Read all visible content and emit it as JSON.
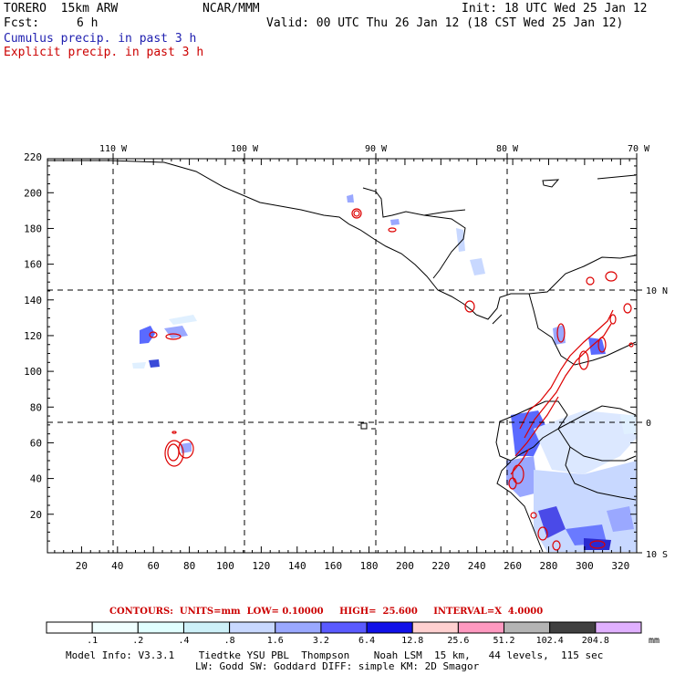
{
  "header": {
    "model": "TORERO  15km ARW",
    "fcst_label": "Fcst:",
    "fcst_value": "6 h",
    "center": "NCAR/MMM",
    "init": "Init: 18 UTC Wed 25 Jan 12",
    "valid": "Valid: 00 UTC Thu 26 Jan 12 (18 CST Wed 25 Jan 12)",
    "field1": "Cumulus precip. in past 3 h",
    "field2": "Explicit precip. in past 3 h"
  },
  "axes": {
    "top_lon_labels": [
      "110 W",
      "100 W",
      "90 W",
      "80 W",
      "70 W"
    ],
    "right_lat_labels": [
      "10 N",
      "0",
      "10 S"
    ],
    "left_ticks": [
      "220",
      "200",
      "180",
      "160",
      "140",
      "120",
      "100",
      "80",
      "60",
      "40",
      "20"
    ],
    "bottom_ticks": [
      "20",
      "40",
      "60",
      "80",
      "100",
      "120",
      "140",
      "160",
      "180",
      "200",
      "220",
      "240",
      "260",
      "280",
      "300",
      "320"
    ]
  },
  "contour_info": {
    "units": "CONTOURS:  UNITS=mm  LOW= 0.10000",
    "high": "HIGH=  25.600",
    "interval": "INTERVAL=X  4.0000"
  },
  "colorbar": {
    "labels": [
      ".1",
      ".2",
      ".4",
      ".8",
      "1.6",
      "3.2",
      "6.4",
      "12.8",
      "25.6",
      "51.2",
      "102.4",
      "204.8"
    ],
    "unit": "mm",
    "colors": [
      "#ffffff",
      "#f0ffff",
      "#e0ffff",
      "#cdf0f8",
      "#c8d8ff",
      "#9aa8ff",
      "#5a5aff",
      "#1010e8",
      "#ffd0d0",
      "#ff99c0",
      "#b4b4b4",
      "#404040",
      "#e0b0ff"
    ]
  },
  "footer": {
    "line1": "Model Info: V3.3.1    Tiedtke YSU PBL  Thompson    Noah LSM  15 km,   44 levels,  115 sec",
    "line2": "LW: Godd SW: Goddard DIFF: simple KM: 2D Smagor"
  }
}
